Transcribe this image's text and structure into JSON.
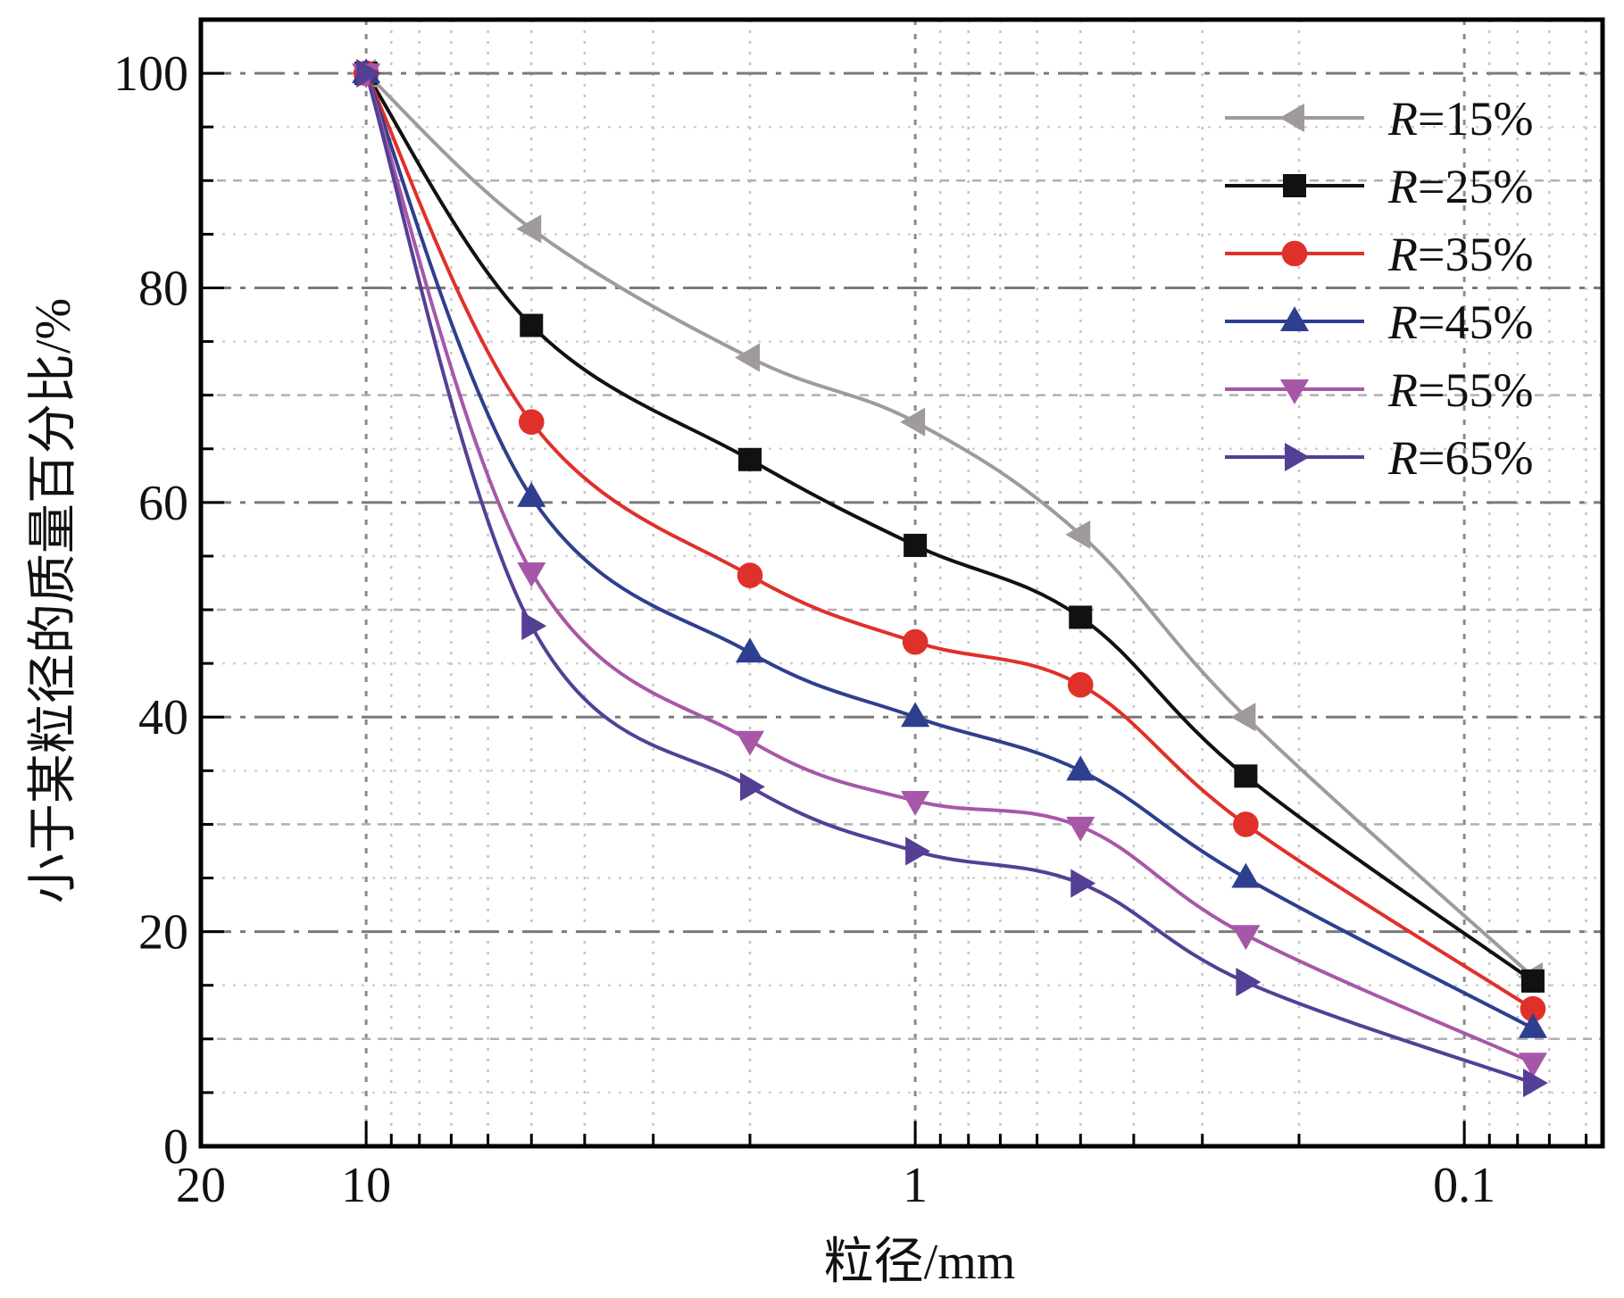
{
  "chart_data": {
    "type": "line",
    "xlabel": "粒径/mm",
    "ylabel": "小于某粒径的质量百分比/%",
    "x_scale": "log",
    "x_reversed": true,
    "xlim": [
      20,
      0.056
    ],
    "ylim": [
      0,
      105
    ],
    "x_ticks": [
      {
        "value": 20,
        "label": "20"
      },
      {
        "value": 10,
        "label": "10"
      },
      {
        "value": 1,
        "label": "1"
      },
      {
        "value": 0.1,
        "label": "0.1"
      }
    ],
    "y_ticks": [
      {
        "value": 0,
        "label": "0"
      },
      {
        "value": 20,
        "label": "20"
      },
      {
        "value": 40,
        "label": "40"
      },
      {
        "value": 60,
        "label": "60"
      },
      {
        "value": 80,
        "label": "80"
      },
      {
        "value": 100,
        "label": "100"
      }
    ],
    "grid": true,
    "legend_position": "top-right",
    "x": [
      10,
      5,
      2,
      1,
      0.5,
      0.25,
      0.075
    ],
    "series": [
      {
        "legend_var": "R",
        "legend_rest": "=15%",
        "color": "#a09a9a",
        "marker": "triangle-left",
        "values": [
          100,
          85.5,
          73.5,
          67.5,
          57,
          40,
          15.8
        ]
      },
      {
        "legend_var": "R",
        "legend_rest": "=25%",
        "color": "#111111",
        "marker": "square",
        "values": [
          100,
          76.5,
          64,
          56,
          49.3,
          34.5,
          15.4
        ]
      },
      {
        "legend_var": "R",
        "legend_rest": "=35%",
        "color": "#e0302a",
        "marker": "circle",
        "values": [
          100,
          67.5,
          53.2,
          47,
          43,
          30,
          12.8
        ]
      },
      {
        "legend_var": "R",
        "legend_rest": "=45%",
        "color": "#2e3f8f",
        "marker": "triangle-up",
        "values": [
          100,
          60.5,
          46,
          40,
          35,
          25,
          11
        ]
      },
      {
        "legend_var": "R",
        "legend_rest": "=55%",
        "color": "#a757a8",
        "marker": "triangle-down",
        "values": [
          100,
          53.5,
          37.8,
          32.2,
          29.8,
          19.7,
          7.8
        ]
      },
      {
        "legend_var": "R",
        "legend_rest": "=65%",
        "color": "#553f95",
        "marker": "triangle-right",
        "values": [
          100,
          48.5,
          33.5,
          27.5,
          24.5,
          15.3,
          5.9
        ]
      }
    ]
  }
}
